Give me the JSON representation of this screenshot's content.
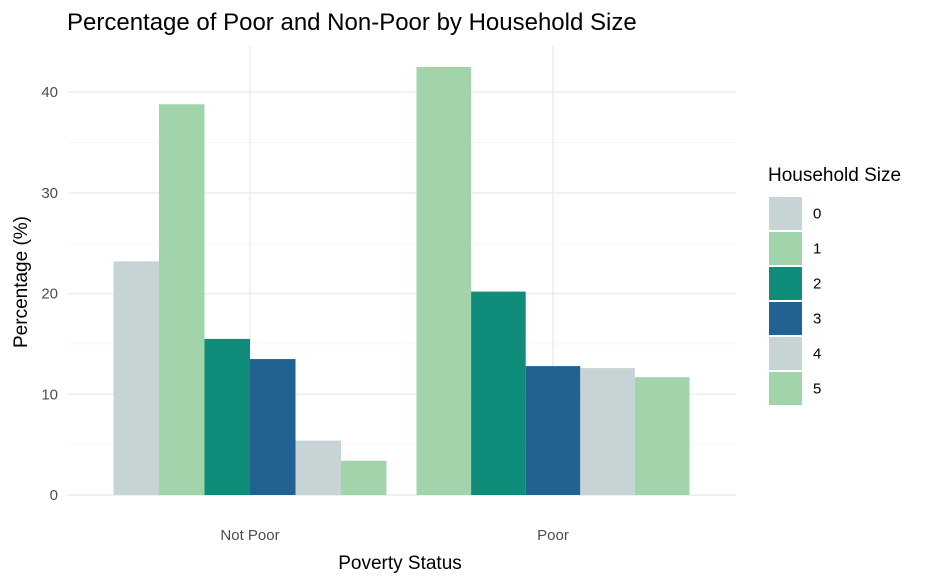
{
  "chart_data": {
    "type": "bar",
    "title": "Percentage of Poor and Non-Poor by Household Size",
    "xlabel": "Poverty Status",
    "ylabel": "Percentage (%)",
    "categories": [
      "Not Poor",
      "Poor"
    ],
    "ylim": [
      0,
      45
    ],
    "yticks": [
      "0",
      "10",
      "20",
      "30",
      "40"
    ],
    "legend_title": "Household Size",
    "legend_position": "right",
    "grid": true,
    "series": [
      {
        "name": "0",
        "color": "#c6d4d6",
        "values": [
          23.2,
          null
        ]
      },
      {
        "name": "1",
        "color": "#a1d4ab",
        "values": [
          38.8,
          42.5
        ]
      },
      {
        "name": "2",
        "color": "#0f8c7a",
        "values": [
          15.5,
          20.2
        ]
      },
      {
        "name": "3",
        "color": "#226293",
        "values": [
          13.5,
          12.8
        ]
      },
      {
        "name": "4",
        "color": "#c6d4d6",
        "values": [
          5.4,
          12.6
        ]
      },
      {
        "name": "5",
        "color": "#a1d4ab",
        "values": [
          3.4,
          11.7
        ]
      }
    ]
  }
}
